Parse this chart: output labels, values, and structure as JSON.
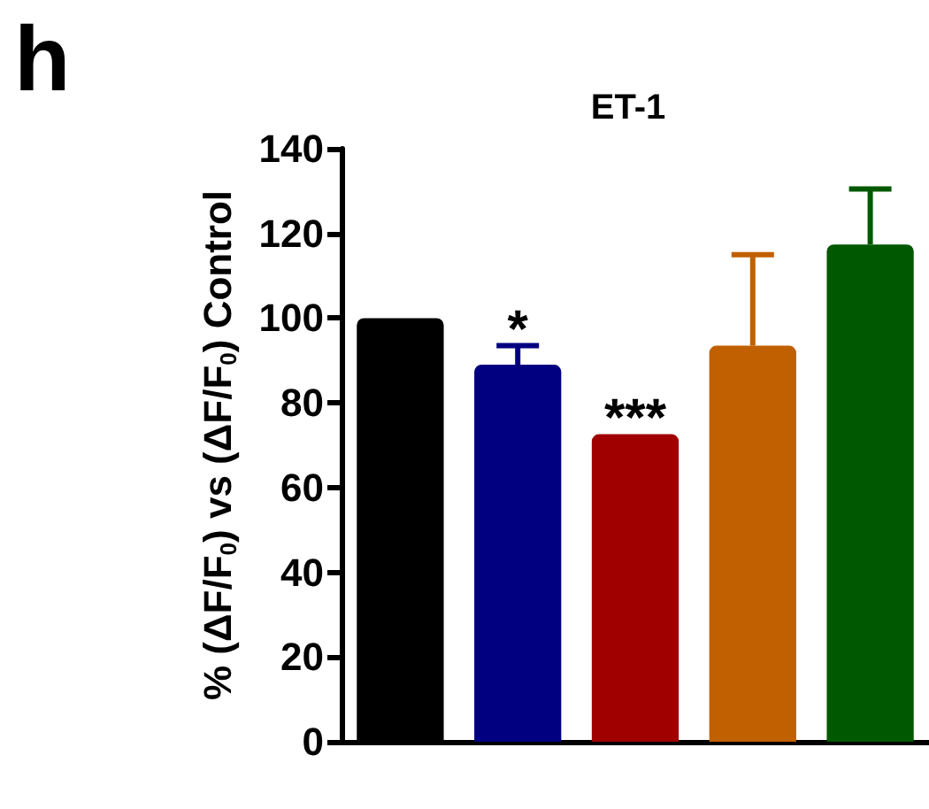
{
  "chart_data": {
    "type": "bar",
    "title": "ET-1",
    "ylabel": "% (ΔF/F$_{0}$) vs (ΔF/F$_{0}$) Control",
    "annotations": [
      "h"
    ],
    "categories": [
      null,
      null,
      null,
      null,
      null
    ],
    "values": [
      100,
      89,
      72.6,
      93.5,
      117.4
    ],
    "colors": [
      "#000000",
      "#000080",
      "#a00000",
      "#c06000",
      "#005800"
    ],
    "errors": [
      null,
      [
        89,
        93.5
      ],
      null,
      [
        93.5,
        115
      ],
      [
        117.4,
        130.5
      ]
    ],
    "value_labels": [
      null,
      "*",
      "***",
      null,
      null
    ],
    "ylim": [
      0,
      140
    ],
    "yticks": [
      0,
      20,
      40,
      60,
      80,
      100,
      120,
      140
    ],
    "grid": false
  }
}
